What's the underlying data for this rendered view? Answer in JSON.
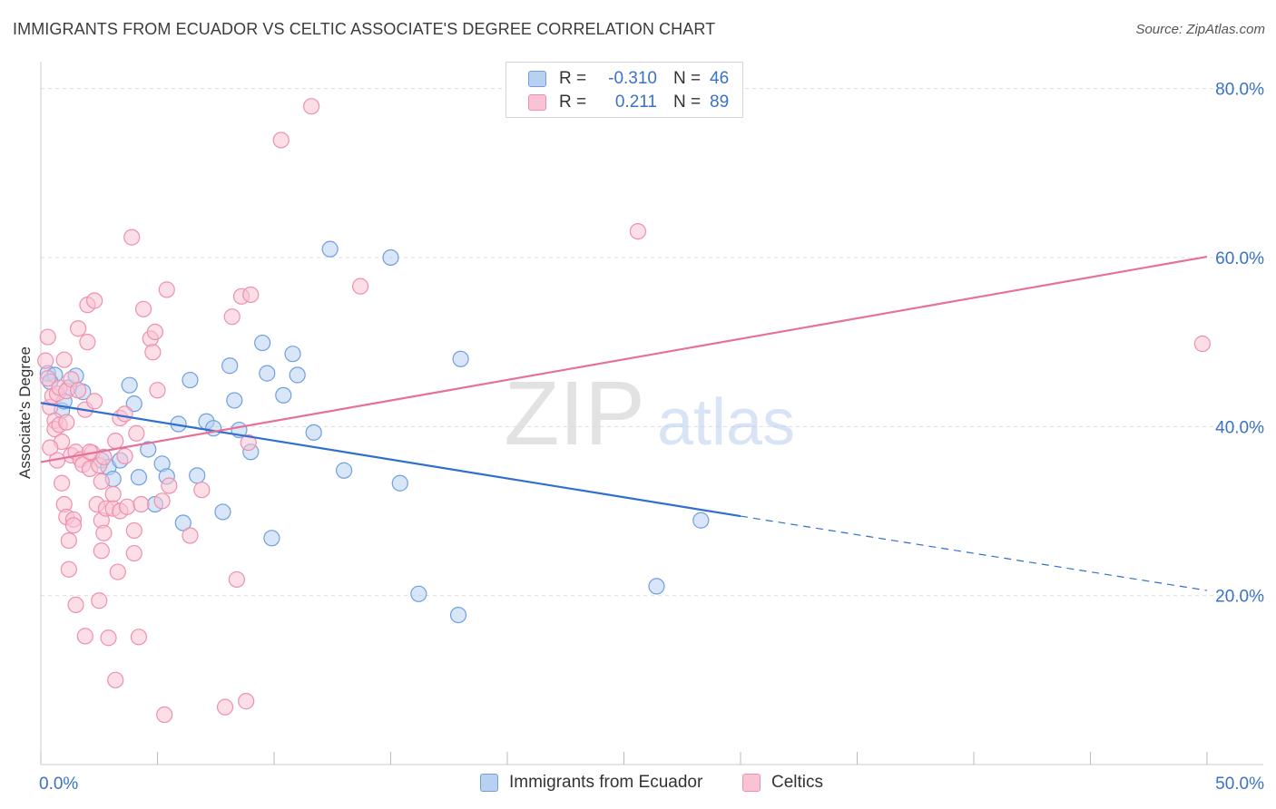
{
  "title": "IMMIGRANTS FROM ECUADOR VS CELTIC ASSOCIATE'S DEGREE CORRELATION CHART",
  "source": "Source: ZipAtlas.com",
  "watermark": {
    "zip": "ZIP",
    "atlas": "atlas"
  },
  "legend_top": {
    "rows": [
      {
        "r_label": "R =",
        "r_value": "-0.310",
        "n_label": "N =",
        "n_value": "46",
        "fill": "#b8d1f3",
        "stroke": "#6f9fe0"
      },
      {
        "r_label": "R =",
        "r_value": "0.211",
        "n_label": "N =",
        "n_value": "89",
        "fill": "#f9c3d3",
        "stroke": "#ee90ad"
      }
    ]
  },
  "legend_bottom": [
    {
      "label": "Immigrants from Ecuador",
      "fill": "#b8d1f3",
      "stroke": "#6f9fe0"
    },
    {
      "label": "Celtics",
      "fill": "#f9c3d3",
      "stroke": "#ee90ad"
    }
  ],
  "chart_data": {
    "type": "scatter",
    "title": "IMMIGRANTS FROM ECUADOR VS CELTIC ASSOCIATE'S DEGREE CORRELATION CHART",
    "xlabel": "",
    "ylabel": "Associate's Degree",
    "xlim": [
      0,
      50
    ],
    "ylim": [
      0,
      82
    ],
    "x_tick_labels": [
      {
        "value": 0,
        "label": "0.0%"
      },
      {
        "value": 50,
        "label": "50.0%"
      }
    ],
    "y_tick_labels": [
      {
        "value": 20,
        "label": "20.0%"
      },
      {
        "value": 40,
        "label": "40.0%"
      },
      {
        "value": 60,
        "label": "60.0%"
      },
      {
        "value": 80,
        "label": "80.0%"
      }
    ],
    "grid": "horizontal dashed",
    "series": [
      {
        "name": "Immigrants from Ecuador",
        "color": "#6f9fe0",
        "fill": "#b8d1f3",
        "trend": {
          "x": [
            0,
            30
          ],
          "y": [
            42.8,
            29.4
          ],
          "dashed_extension_to": [
            50,
            20.6
          ],
          "color": "#2f6fce"
        },
        "points": [
          [
            0.3,
            46.3
          ],
          [
            0.6,
            46.1
          ],
          [
            0.9,
            41.9
          ],
          [
            1.2,
            44.6
          ],
          [
            1.5,
            46.0
          ],
          [
            1.8,
            44.1
          ],
          [
            2.6,
            36.0
          ],
          [
            2.9,
            35.2
          ],
          [
            3.1,
            33.8
          ],
          [
            3.4,
            36.0
          ],
          [
            3.8,
            44.9
          ],
          [
            4.0,
            42.7
          ],
          [
            4.2,
            34.0
          ],
          [
            4.6,
            37.3
          ],
          [
            4.9,
            30.8
          ],
          [
            5.2,
            35.6
          ],
          [
            5.4,
            34.1
          ],
          [
            5.9,
            40.3
          ],
          [
            6.1,
            28.6
          ],
          [
            6.4,
            45.5
          ],
          [
            6.7,
            34.2
          ],
          [
            7.1,
            40.6
          ],
          [
            7.4,
            39.8
          ],
          [
            7.8,
            29.9
          ],
          [
            8.1,
            47.2
          ],
          [
            8.3,
            43.1
          ],
          [
            8.5,
            39.6
          ],
          [
            9.0,
            37.0
          ],
          [
            9.5,
            49.9
          ],
          [
            9.7,
            46.3
          ],
          [
            9.9,
            26.8
          ],
          [
            10.4,
            43.7
          ],
          [
            10.8,
            48.6
          ],
          [
            11.0,
            46.1
          ],
          [
            11.7,
            39.3
          ],
          [
            12.4,
            61.0
          ],
          [
            13.0,
            34.8
          ],
          [
            15.0,
            60.0
          ],
          [
            15.4,
            33.3
          ],
          [
            16.2,
            20.2
          ],
          [
            17.9,
            17.7
          ],
          [
            18.0,
            48.0
          ],
          [
            26.4,
            21.1
          ],
          [
            28.3,
            28.9
          ],
          [
            0.4,
            45.3
          ],
          [
            1.0,
            43.0
          ]
        ]
      },
      {
        "name": "Celtics",
        "color": "#ee90ad",
        "fill": "#f9c3d3",
        "trend": {
          "x": [
            0,
            50
          ],
          "y": [
            35.8,
            60.1
          ],
          "color": "#e5709a"
        },
        "points": [
          [
            0.2,
            47.8
          ],
          [
            0.3,
            50.6
          ],
          [
            0.3,
            45.7
          ],
          [
            0.4,
            42.3
          ],
          [
            0.5,
            43.6
          ],
          [
            0.6,
            40.7
          ],
          [
            0.6,
            39.7
          ],
          [
            0.7,
            43.9
          ],
          [
            0.8,
            44.6
          ],
          [
            0.8,
            40.2
          ],
          [
            0.9,
            38.2
          ],
          [
            0.9,
            33.3
          ],
          [
            1.0,
            30.8
          ],
          [
            1.0,
            47.9
          ],
          [
            1.1,
            44.2
          ],
          [
            1.1,
            29.3
          ],
          [
            1.2,
            26.5
          ],
          [
            1.2,
            23.1
          ],
          [
            1.3,
            45.6
          ],
          [
            1.3,
            36.6
          ],
          [
            1.4,
            29.0
          ],
          [
            1.4,
            28.3
          ],
          [
            1.5,
            18.9
          ],
          [
            1.5,
            37.0
          ],
          [
            1.6,
            51.6
          ],
          [
            1.7,
            36.1
          ],
          [
            1.8,
            35.5
          ],
          [
            1.9,
            15.2
          ],
          [
            1.9,
            42.0
          ],
          [
            2.0,
            54.4
          ],
          [
            2.0,
            50.0
          ],
          [
            2.1,
            35.0
          ],
          [
            2.2,
            36.9
          ],
          [
            2.3,
            43.0
          ],
          [
            2.3,
            54.9
          ],
          [
            2.4,
            30.8
          ],
          [
            2.5,
            19.4
          ],
          [
            2.5,
            35.4
          ],
          [
            2.6,
            25.3
          ],
          [
            2.6,
            28.9
          ],
          [
            2.7,
            27.4
          ],
          [
            2.7,
            36.4
          ],
          [
            2.8,
            30.3
          ],
          [
            2.9,
            15.0
          ],
          [
            3.1,
            32.0
          ],
          [
            3.1,
            30.3
          ],
          [
            3.2,
            38.3
          ],
          [
            3.2,
            10.0
          ],
          [
            3.3,
            22.8
          ],
          [
            3.4,
            30.0
          ],
          [
            3.4,
            41.0
          ],
          [
            3.6,
            41.5
          ],
          [
            3.7,
            30.5
          ],
          [
            3.9,
            62.4
          ],
          [
            4.0,
            25.0
          ],
          [
            4.0,
            27.7
          ],
          [
            4.1,
            39.2
          ],
          [
            4.2,
            15.1
          ],
          [
            4.3,
            30.8
          ],
          [
            4.4,
            53.9
          ],
          [
            4.7,
            50.4
          ],
          [
            4.8,
            48.8
          ],
          [
            4.9,
            51.2
          ],
          [
            5.0,
            44.3
          ],
          [
            5.2,
            31.2
          ],
          [
            5.3,
            5.9
          ],
          [
            5.4,
            56.2
          ],
          [
            5.5,
            33.0
          ],
          [
            6.4,
            27.1
          ],
          [
            6.9,
            32.5
          ],
          [
            7.9,
            6.8
          ],
          [
            8.2,
            53.0
          ],
          [
            8.4,
            21.9
          ],
          [
            8.6,
            55.4
          ],
          [
            8.8,
            7.5
          ],
          [
            8.9,
            38.1
          ],
          [
            9.0,
            55.6
          ],
          [
            10.3,
            73.9
          ],
          [
            11.6,
            77.9
          ],
          [
            13.7,
            56.6
          ],
          [
            25.6,
            63.1
          ],
          [
            49.8,
            49.8
          ],
          [
            0.4,
            37.5
          ],
          [
            0.7,
            36.0
          ],
          [
            1.1,
            40.5
          ],
          [
            1.6,
            44.3
          ],
          [
            2.1,
            37.0
          ],
          [
            2.6,
            33.5
          ],
          [
            3.6,
            36.5
          ]
        ]
      }
    ]
  }
}
